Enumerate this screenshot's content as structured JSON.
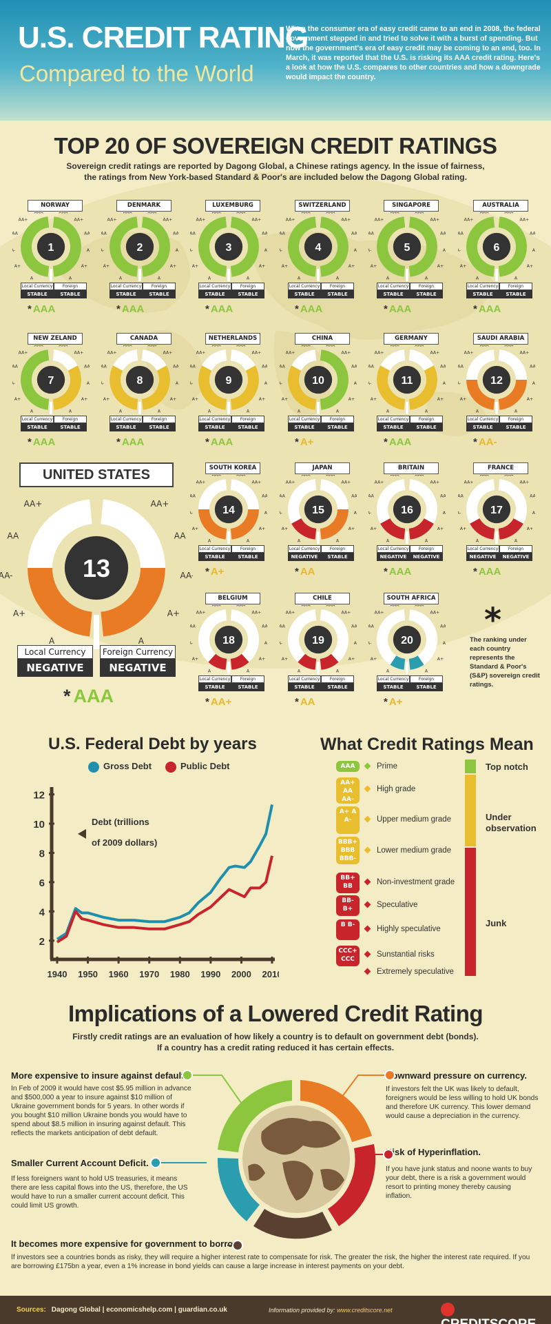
{
  "header": {
    "title": "U.S. CREDIT RATING",
    "subtitle": "Compared to the World",
    "intro": "When the consumer era of easy credit came to an end in 2008, the federal government stepped in and tried to solve it with a burst of spending. But now the government's era of easy credit may be coming to an end, too. In March, it was reported that the U.S. is risking its AAA credit rating. Here's a look at how the U.S. compares to other countries and how a downgrade would impact the country."
  },
  "top20": {
    "title": "TOP 20 OF SOVEREIGN CREDIT RATINGS",
    "description_line1": "Sovereign credit ratings are reported by Dagong Global, a Chinese ratings agency. In the issue of fairness,",
    "description_line2": "the ratings from New York-based Standard & Poor's are included below the Dagong Global rating.",
    "ring_labels": {
      "left": [
        "AAA",
        "AA+",
        "AA",
        "AA-",
        "A+",
        "A"
      ],
      "right": [
        "AAA",
        "AA+",
        "AA",
        "AA-",
        "A+",
        "A"
      ]
    },
    "local_label": "Local Currency",
    "foreign_label": "Foreign Currency",
    "colors": {
      "AAA": "#8cc63f",
      "AA+": "#d8c43a",
      "AA": "#e8bd2e",
      "AA-": "#e87b24",
      "A+": "#c8242c",
      "A": "#2a9dae",
      "empty": "#ffffff"
    },
    "countries": [
      {
        "name": "NORWAY",
        "rank": "1",
        "local": "STABLE",
        "foreign": "STABLE",
        "sp": "AAA",
        "sp_color": "#8cc63f",
        "fill": 6,
        "color": "#8cc63f"
      },
      {
        "name": "DENMARK",
        "rank": "2",
        "local": "STABLE",
        "foreign": "STABLE",
        "sp": "AAA",
        "sp_color": "#8cc63f",
        "fill": 6,
        "color": "#8cc63f"
      },
      {
        "name": "LUXEMBURG",
        "rank": "3",
        "local": "STABLE",
        "foreign": "STABLE",
        "sp": "AAA",
        "sp_color": "#8cc63f",
        "fill": 6,
        "color": "#8cc63f"
      },
      {
        "name": "SWITZERLAND",
        "rank": "4",
        "local": "STABLE",
        "foreign": "STABLE",
        "sp": "AAA",
        "sp_color": "#8cc63f",
        "fill": 6,
        "color": "#8cc63f"
      },
      {
        "name": "SINGAPORE",
        "rank": "5",
        "local": "STABLE",
        "foreign": "STABLE",
        "sp": "AAA",
        "sp_color": "#8cc63f",
        "fill": 6,
        "color": "#8cc63f"
      },
      {
        "name": "AUSTRALIA",
        "rank": "6",
        "local": "STABLE",
        "foreign": "STABLE",
        "sp": "AAA",
        "sp_color": "#8cc63f",
        "fill": 6,
        "color": "#8cc63f"
      },
      {
        "name": "NEW ZELAND",
        "rank": "7",
        "local": "STABLE",
        "foreign": "STABLE",
        "sp": "AAA",
        "sp_color": "#8cc63f",
        "fill": 6,
        "color": "#8cc63f",
        "fill_r": 4,
        "color_r": "#e8bd2e"
      },
      {
        "name": "CANADA",
        "rank": "8",
        "local": "STABLE",
        "foreign": "STABLE",
        "sp": "AAA",
        "sp_color": "#8cc63f",
        "fill": 4,
        "color": "#e8bd2e"
      },
      {
        "name": "NETHERLANDS",
        "rank": "9",
        "local": "STABLE",
        "foreign": "STABLE",
        "sp": "AAA",
        "sp_color": "#8cc63f",
        "fill": 4,
        "color": "#e8bd2e"
      },
      {
        "name": "CHINA",
        "rank": "10",
        "local": "STABLE",
        "foreign": "STABLE",
        "sp": "A+",
        "sp_color": "#e8b82e",
        "fill": 4,
        "color": "#e8bd2e",
        "fill_r": 6,
        "color_r": "#8cc63f"
      },
      {
        "name": "GERMANY",
        "rank": "11",
        "local": "STABLE",
        "foreign": "STABLE",
        "sp": "AAA",
        "sp_color": "#8cc63f",
        "fill": 4,
        "color": "#e8bd2e"
      },
      {
        "name": "SAUDI ARABIA",
        "rank": "12",
        "local": "STABLE",
        "foreign": "STABLE",
        "sp": "AA-",
        "sp_color": "#e8b82e",
        "fill": 3,
        "color": "#e87b24"
      },
      {
        "name": "SOUTH KOREA",
        "rank": "14",
        "local": "STABLE",
        "foreign": "STABLE",
        "sp": "A+",
        "sp_color": "#e8b82e",
        "fill": 3,
        "color": "#e87b24"
      },
      {
        "name": "JAPAN",
        "rank": "15",
        "local": "NEGATIVE",
        "foreign": "STABLE",
        "sp": "AA",
        "sp_color": "#e8b82e",
        "fill": 2,
        "color": "#c8242c",
        "fill_r": 3,
        "color_r": "#e87b24"
      },
      {
        "name": "BRITAIN",
        "rank": "16",
        "local": "NEGATIVE",
        "foreign": "NEGATIVE",
        "sp": "AAA",
        "sp_color": "#8cc63f",
        "fill": 2,
        "color": "#c8242c"
      },
      {
        "name": "FRANCE",
        "rank": "17",
        "local": "NEGATIVE",
        "foreign": "NEGATIVE",
        "sp": "AAA",
        "sp_color": "#8cc63f",
        "fill": 2,
        "color": "#c8242c"
      },
      {
        "name": "BELGIUM",
        "rank": "18",
        "local": "STABLE",
        "foreign": "STABLE",
        "sp": "AA+",
        "sp_color": "#e8b82e",
        "fill": 1.3,
        "color": "#c8242c"
      },
      {
        "name": "CHILE",
        "rank": "19",
        "local": "STABLE",
        "foreign": "STABLE",
        "sp": "AA",
        "sp_color": "#e8b82e",
        "fill": 1.3,
        "color": "#c8242c"
      },
      {
        "name": "SOUTH AFRICA",
        "rank": "20",
        "local": "STABLE",
        "foreign": "STABLE",
        "sp": "A+",
        "sp_color": "#e8b82e",
        "fill": 1,
        "color": "#2a9dae"
      }
    ],
    "us": {
      "name": "UNITED STATES",
      "rank": "13",
      "local_label": "Local Currency",
      "foreign_label": "Foreign Currency",
      "local": "NEGATIVE",
      "foreign": "NEGATIVE",
      "sp": "AAA",
      "sp_color": "#8cc63f",
      "fill": 3,
      "color": "#e87b24"
    },
    "note_star": "*",
    "note": "The ranking under each country represents the Standard & Poor's (S&P) sovereign credit ratings.",
    "sp_star": "*"
  },
  "debt_chart": {
    "title": "U.S. Federal Debt by years",
    "annotation_line1": "Debt (trillions",
    "annotation_line2": "of 2009 dollars)",
    "chart_data": {
      "type": "line",
      "title": "U.S. Federal Debt by years",
      "ylabel": "Debt (trillions of 2009 dollars)",
      "x_ticks": [
        "1940",
        "1950",
        "1960",
        "1970",
        "1980",
        "1990",
        "2000",
        "2010"
      ],
      "y_ticks": [
        "2",
        "4",
        "6",
        "8",
        "10",
        "12"
      ],
      "xlim": [
        1940,
        2010
      ],
      "ylim": [
        1,
        12.5
      ],
      "series": [
        {
          "name": "Gross Debt",
          "color": "#1e8fae",
          "x": [
            1940,
            1943,
            1946,
            1948,
            1950,
            1955,
            1960,
            1965,
            1970,
            1975,
            1980,
            1983,
            1986,
            1990,
            1993,
            1996,
            1998,
            2001,
            2003,
            2006,
            2008,
            2010
          ],
          "y": [
            2.1,
            2.5,
            4.2,
            3.9,
            3.9,
            3.6,
            3.4,
            3.4,
            3.3,
            3.3,
            3.6,
            3.9,
            4.6,
            5.3,
            6.2,
            7.0,
            7.1,
            7.0,
            7.4,
            8.5,
            9.3,
            11.3
          ]
        },
        {
          "name": "Public Debt",
          "color": "#c8242c",
          "x": [
            1940,
            1943,
            1946,
            1948,
            1950,
            1955,
            1960,
            1965,
            1970,
            1975,
            1980,
            1983,
            1986,
            1990,
            1993,
            1996,
            1998,
            2001,
            2003,
            2006,
            2008,
            2010
          ],
          "y": [
            1.9,
            2.3,
            4.0,
            3.5,
            3.4,
            3.1,
            2.9,
            2.9,
            2.8,
            2.8,
            3.1,
            3.3,
            3.8,
            4.3,
            4.9,
            5.5,
            5.3,
            5.0,
            5.6,
            5.6,
            6.0,
            7.8
          ]
        }
      ]
    }
  },
  "ratings_mean": {
    "title": "What Credit Ratings Mean",
    "rows": [
      {
        "badge": "AAA",
        "color": "#8cc63f",
        "label": "Prime",
        "diamond": "#8cc63f"
      },
      {
        "badge": "AA+ AA AA-",
        "color": "#e8bd2e",
        "label": "High grade",
        "diamond": "#e8bd2e"
      },
      {
        "badge": "A+ A A-",
        "color": "#e8bd2e",
        "label": "Upper medium grade",
        "diamond": "#e8bd2e"
      },
      {
        "badge": "BBB+ BBB BBB-",
        "color": "#e8bd2e",
        "label": "Lower medium grade",
        "diamond": "#e8bd2e"
      },
      {
        "badge": "BB+ BB",
        "color": "#c8242c",
        "label": "Non-investment grade",
        "diamond": "#c8242c"
      },
      {
        "badge": "BB- B+",
        "color": "#c8242c",
        "label": "Speculative",
        "diamond": "#c8242c"
      },
      {
        "badge": "B B-",
        "color": "#c8242c",
        "label": "Highly speculative",
        "diamond": "#c8242c"
      },
      {
        "badge": "CCC+ CCC",
        "color": "#c8242c",
        "label": "Sunstantial risks",
        "diamond": "#c8242c"
      },
      {
        "badge": "",
        "color": "#c8242c",
        "label": "Extremely speculative",
        "diamond": "#c8242c"
      }
    ],
    "categories": [
      {
        "label": "Top notch",
        "color": "#8cc63f"
      },
      {
        "label": "Under observation",
        "color": "#e8bd2e"
      },
      {
        "label": "Junk",
        "color": "#c8242c"
      }
    ]
  },
  "implications": {
    "title": "Implications of a Lowered Credit Rating",
    "desc_line1": "Firstly credit ratings are an evaluation of how likely a country is to default on government debt (bonds).",
    "desc_line2": "If a country has a credit rating reduced it has certain effects.",
    "items": [
      {
        "heading": "More expensive to insure  against default.",
        "text": "In Feb of 2009 it would have cost $5.95 million in advance and $500,000 a year to insure against $10 million of Ukraine government bonds for 5 years. In other words if you bought $10 million Ukraine bonds you would have to spend about $8.5 million in insuring against default. This reflects the markets anticipation of debt default.",
        "color": "#8cc63f"
      },
      {
        "heading": "Smaller Current  Account Deficit.",
        "text": "If less foreigners want to hold US treasuries, it means there are less capital flows into the US, therefore, the US would have to run a smaller current account deficit. This could limit US growth.",
        "color": "#2a9dae"
      },
      {
        "heading": "It becomes more expensive for government to borrow.",
        "text": "If investors see a countries bonds as risky, they will require a higher interest rate to compensate for risk. The greater the risk, the higher the interest rate required. If you are borrowing £175bn a year, even a 1% increase in bond yields can cause a large increase in interest payments on your debt.",
        "color": "#5a4030"
      },
      {
        "heading": "Downward pressure on currency.",
        "text": "If investors felt the UK was likely to default, foreigners would be less willing to hold UK bonds and therefore UK currency. This lower demand would cause a depreciation in the currency.",
        "color": "#e87b24"
      },
      {
        "heading": "Risk of Hyperinflation.",
        "text": "If you have junk status and noone wants to buy your debt, there is a risk a government would resort to printing money thereby causing inflation.",
        "color": "#c8242c"
      }
    ]
  },
  "footer": {
    "sources_label": "Sources:",
    "sources": "Dagong Global  |  economicshelp.com  |  guardian.co.uk",
    "provided_label": "Information provided by:",
    "provided_url": "www.creditscore.net",
    "logo": "CREDITSCORE"
  }
}
